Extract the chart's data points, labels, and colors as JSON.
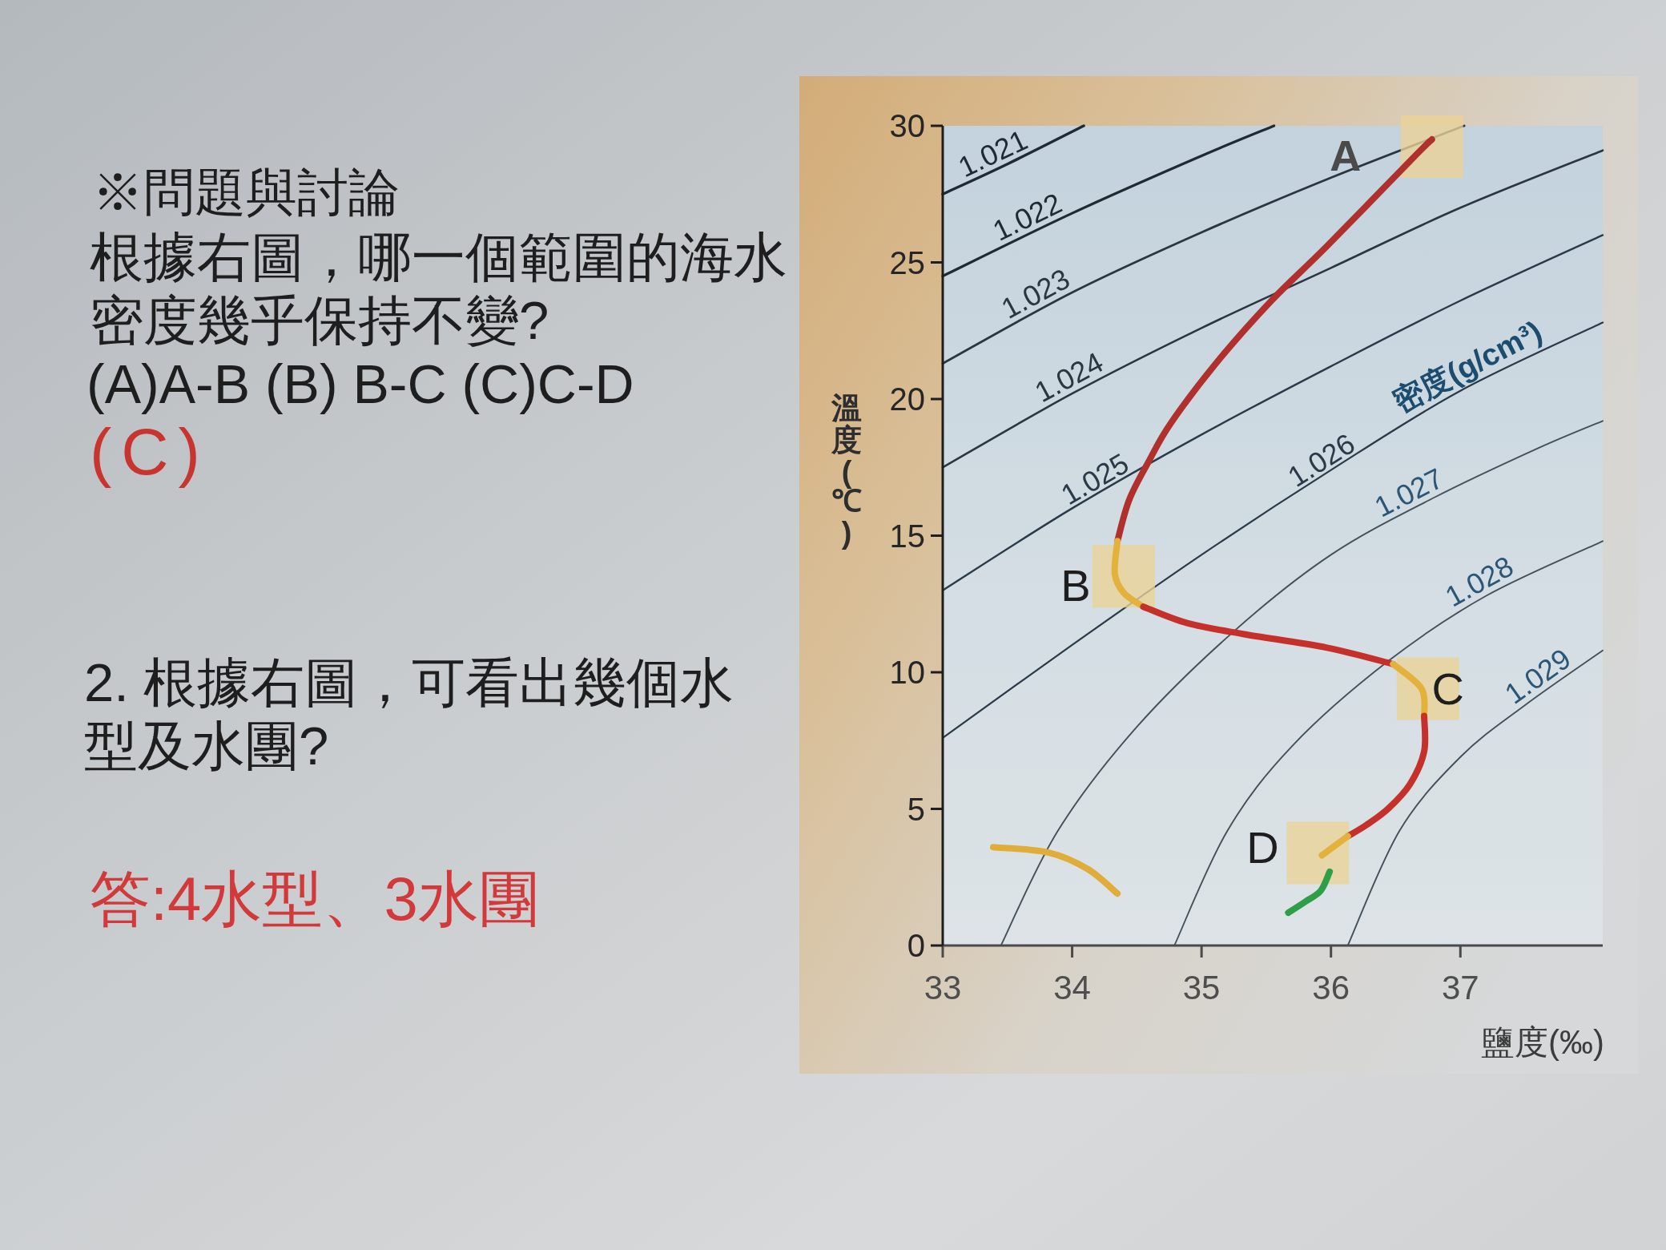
{
  "chart_data": {
    "type": "line",
    "title": "※問題與討論",
    "xlabel": "鹽度(‰)",
    "ylabel": "溫度(℃)",
    "legend_title": "密度(g/cm³)",
    "xlim": [
      33,
      38.1
    ],
    "ylim": [
      0,
      30
    ],
    "xticks": [
      33,
      34,
      35,
      36,
      37
    ],
    "yticks": [
      0,
      5,
      10,
      15,
      20,
      25,
      30
    ],
    "series": [
      {
        "name": "1.021",
        "color": "#1f2b33",
        "x": [
          33.0,
          33.5,
          34.09
        ],
        "values": [
          27.5,
          28.6,
          30.0
        ]
      },
      {
        "name": "1.022",
        "color": "#1f2b33",
        "x": [
          33.0,
          34.0,
          35.0,
          35.56
        ],
        "values": [
          24.5,
          26.8,
          28.9,
          30.0
        ]
      },
      {
        "name": "1.023",
        "color": "#2a3640",
        "x": [
          33.0,
          34.0,
          35.0,
          36.0,
          37.03
        ],
        "values": [
          21.3,
          23.9,
          26.1,
          28.1,
          30.0
        ]
      },
      {
        "name": "1.024",
        "color": "#2a3640",
        "x": [
          33.0,
          34.0,
          35.0,
          36.0,
          37.0,
          38.1
        ],
        "values": [
          17.5,
          20.2,
          22.6,
          24.8,
          27.0,
          29.1
        ]
      },
      {
        "name": "1.025",
        "color": "#2a3a48",
        "x": [
          33.0,
          34.0,
          35.0,
          36.0,
          37.0,
          38.1
        ],
        "values": [
          13.0,
          16.0,
          18.7,
          21.2,
          23.6,
          26.0
        ]
      },
      {
        "name": "1.026",
        "color": "#2a3a48",
        "x": [
          33.0,
          34.0,
          35.0,
          36.0,
          37.0,
          38.1
        ],
        "values": [
          7.6,
          11.0,
          14.3,
          17.4,
          20.3,
          22.8
        ]
      },
      {
        "name": "1.027",
        "color": "#44505a",
        "x": [
          33.45,
          33.89,
          34.5,
          35.25,
          36.0,
          36.8,
          37.6,
          38.1
        ],
        "values": [
          0.0,
          4.2,
          8.0,
          11.5,
          14.3,
          16.4,
          18.2,
          19.2
        ]
      },
      {
        "name": "1.028",
        "color": "#44505a",
        "x": [
          34.79,
          35.2,
          35.7,
          36.44,
          37.2,
          38.1
        ],
        "values": [
          0.0,
          4.2,
          7.3,
          10.4,
          12.8,
          14.8
        ]
      },
      {
        "name": "1.029",
        "color": "#44505a",
        "x": [
          36.13,
          36.53,
          37.0,
          37.5,
          38.1
        ],
        "values": [
          0.0,
          4.2,
          6.9,
          8.8,
          10.8
        ]
      },
      {
        "color": "#b0302e",
        "x": [
          36.78,
          36.65,
          35.97,
          35.54,
          35.11,
          34.76,
          34.59,
          34.44,
          34.35
        ],
        "values": [
          29.5,
          28.9,
          25.6,
          23.6,
          21.3,
          19.1,
          17.7,
          16.3,
          14.8
        ]
      },
      {
        "color": "#e3b23c",
        "x": [
          34.35,
          34.33,
          34.4,
          34.55
        ],
        "values": [
          14.8,
          13.6,
          12.9,
          12.4
        ]
      },
      {
        "color": "#c5302b",
        "x": [
          34.55,
          34.89,
          35.32,
          35.97,
          36.48
        ],
        "values": [
          12.4,
          11.8,
          11.4,
          10.9,
          10.3
        ]
      },
      {
        "color": "#e3b23c",
        "x": [
          36.48,
          36.7,
          36.72
        ],
        "values": [
          10.3,
          9.4,
          8.4
        ]
      },
      {
        "color": "#c5302b",
        "x": [
          36.72,
          36.72,
          36.61,
          36.44,
          36.27,
          36.13
        ],
        "values": [
          8.4,
          7.1,
          5.9,
          5.0,
          4.4,
          4.0
        ]
      },
      {
        "color": "#e3b23c",
        "x": [
          36.13,
          35.93
        ],
        "values": [
          4.0,
          3.3
        ]
      },
      {
        "color": "#2e9e48",
        "x": [
          35.99,
          35.92,
          35.8,
          35.67
        ],
        "values": [
          2.7,
          2.0,
          1.6,
          1.2
        ]
      },
      {
        "color": "#e0ac3a",
        "x": [
          33.39,
          33.82,
          34.12,
          34.35
        ],
        "values": [
          3.6,
          3.4,
          2.8,
          1.9
        ]
      }
    ],
    "annotations": [
      {
        "text": "A",
        "x": 36.78,
        "y": 29.5
      },
      {
        "text": "B",
        "x": 34.33,
        "y": 13.6
      },
      {
        "text": "C",
        "x": 36.7,
        "y": 9.4
      },
      {
        "text": "D",
        "x": 35.93,
        "y": 3.3
      },
      "根據右圖，哪一個範圍的海水密度幾乎保持不變?",
      "(A)A-B (B) B-C (C)C-D",
      "(C)",
      "2. 根據右圖，可看出幾個水型及水團?",
      "答:4水型、3水團"
    ]
  }
}
